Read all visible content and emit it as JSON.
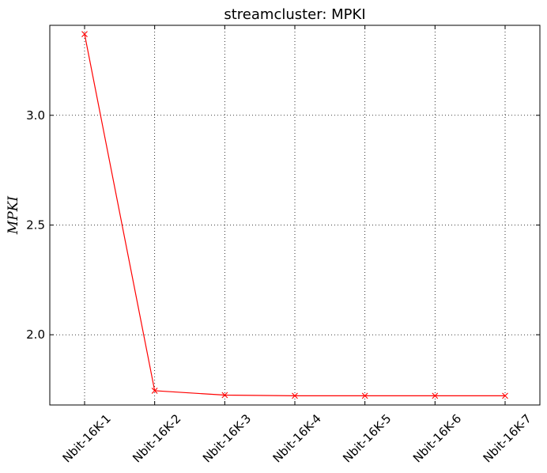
{
  "chart_data": {
    "type": "line",
    "title": "streamcluster: MPKI",
    "xlabel": "",
    "ylabel": "MPKI",
    "categories": [
      "Nbit-16K-1",
      "Nbit-16K-2",
      "Nbit-16K-3",
      "Nbit-16K-4",
      "Nbit-16K-5",
      "Nbit-16K-6",
      "Nbit-16K-7"
    ],
    "series": [
      {
        "values": [
          3.37,
          1.745,
          1.725,
          1.722,
          1.722,
          1.722,
          1.722
        ],
        "color": "#ff0000",
        "marker": "x"
      }
    ],
    "ylim": [
      1.68,
      3.41
    ],
    "yticks": [
      2.0,
      2.5,
      3.0
    ],
    "ytick_labels": [
      "2.0",
      "2.5",
      "3.0"
    ],
    "grid": true,
    "grid_style": "dotted",
    "xtick_rotation": 45
  }
}
